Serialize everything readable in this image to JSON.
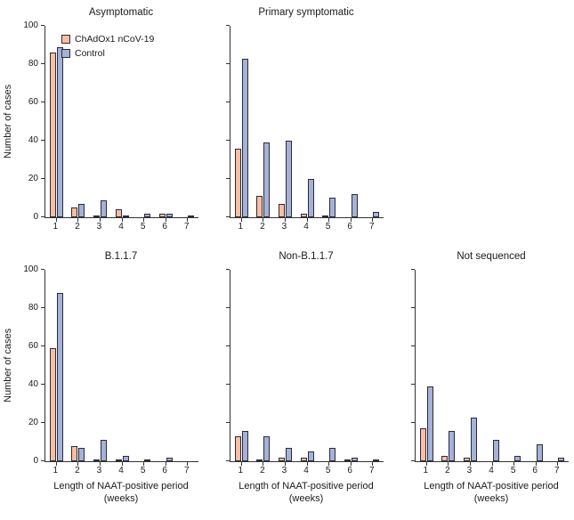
{
  "figure": {
    "ylabel": "Number of cases",
    "xlabel_line1": "Length of NAAT-positive period",
    "xlabel_line2": "(weeks)"
  },
  "legend": {
    "panel_index": 0,
    "items": [
      {
        "label": "ChAdOx1 nCoV-19",
        "color": "#F9BE9F"
      },
      {
        "label": "Control",
        "color": "#A5B2D8"
      }
    ]
  },
  "colors": {
    "bar_outline": "#2B2B3B",
    "axis": "#333333"
  },
  "chart_data": [
    {
      "type": "bar",
      "title": "Asymptomatic",
      "categories": [
        "1",
        "2",
        "3",
        "4",
        "5",
        "6",
        "7"
      ],
      "ylim": [
        0,
        100
      ],
      "yticks": [
        0,
        20,
        40,
        60,
        80,
        100
      ],
      "show_ytick_labels": true,
      "legend_position": "upper-left-inside",
      "series": [
        {
          "name": "ChAdOx1 nCoV-19",
          "values": [
            86,
            5,
            1,
            4,
            0,
            2,
            0
          ]
        },
        {
          "name": "Control",
          "values": [
            89,
            7,
            9,
            1,
            2,
            2,
            1
          ]
        }
      ]
    },
    {
      "type": "bar",
      "title": "Primary symptomatic",
      "categories": [
        "1",
        "2",
        "3",
        "4",
        "5",
        "6",
        "7"
      ],
      "ylim": [
        0,
        100
      ],
      "yticks": [
        0,
        20,
        40,
        60,
        80,
        100
      ],
      "show_ytick_labels": false,
      "series": [
        {
          "name": "ChAdOx1 nCoV-19",
          "values": [
            36,
            11,
            7,
            2,
            1,
            0,
            0
          ]
        },
        {
          "name": "Control",
          "values": [
            83,
            39,
            40,
            20,
            10,
            12,
            3
          ]
        }
      ]
    },
    {
      "type": "bar",
      "title": "B.1.1.7",
      "categories": [
        "1",
        "2",
        "3",
        "4",
        "5",
        "6",
        "7"
      ],
      "ylim": [
        0,
        100
      ],
      "yticks": [
        0,
        20,
        40,
        60,
        80,
        100
      ],
      "show_ytick_labels": true,
      "series": [
        {
          "name": "ChAdOx1 nCoV-19",
          "values": [
            59,
            8,
            1,
            1,
            0,
            0,
            0
          ]
        },
        {
          "name": "Control",
          "values": [
            88,
            7,
            11,
            3,
            1,
            2,
            0
          ]
        }
      ]
    },
    {
      "type": "bar",
      "title": "Non-B.1.1.7",
      "categories": [
        "1",
        "2",
        "3",
        "4",
        "5",
        "6",
        "7"
      ],
      "ylim": [
        0,
        100
      ],
      "yticks": [
        0,
        20,
        40,
        60,
        80,
        100
      ],
      "show_ytick_labels": false,
      "series": [
        {
          "name": "ChAdOx1 nCoV-19",
          "values": [
            13,
            1,
            2,
            2,
            0,
            1,
            0
          ]
        },
        {
          "name": "Control",
          "values": [
            16,
            13,
            7,
            5,
            7,
            2,
            1
          ]
        }
      ]
    },
    {
      "type": "bar",
      "title": "Not sequenced",
      "categories": [
        "1",
        "2",
        "3",
        "4",
        "5",
        "6",
        "7"
      ],
      "ylim": [
        0,
        100
      ],
      "yticks": [
        0,
        20,
        40,
        60,
        80,
        100
      ],
      "show_ytick_labels": false,
      "series": [
        {
          "name": "ChAdOx1 nCoV-19",
          "values": [
            17,
            3,
            2,
            0,
            0,
            0,
            0
          ]
        },
        {
          "name": "Control",
          "values": [
            39,
            16,
            23,
            11,
            3,
            9,
            2
          ]
        }
      ]
    }
  ]
}
